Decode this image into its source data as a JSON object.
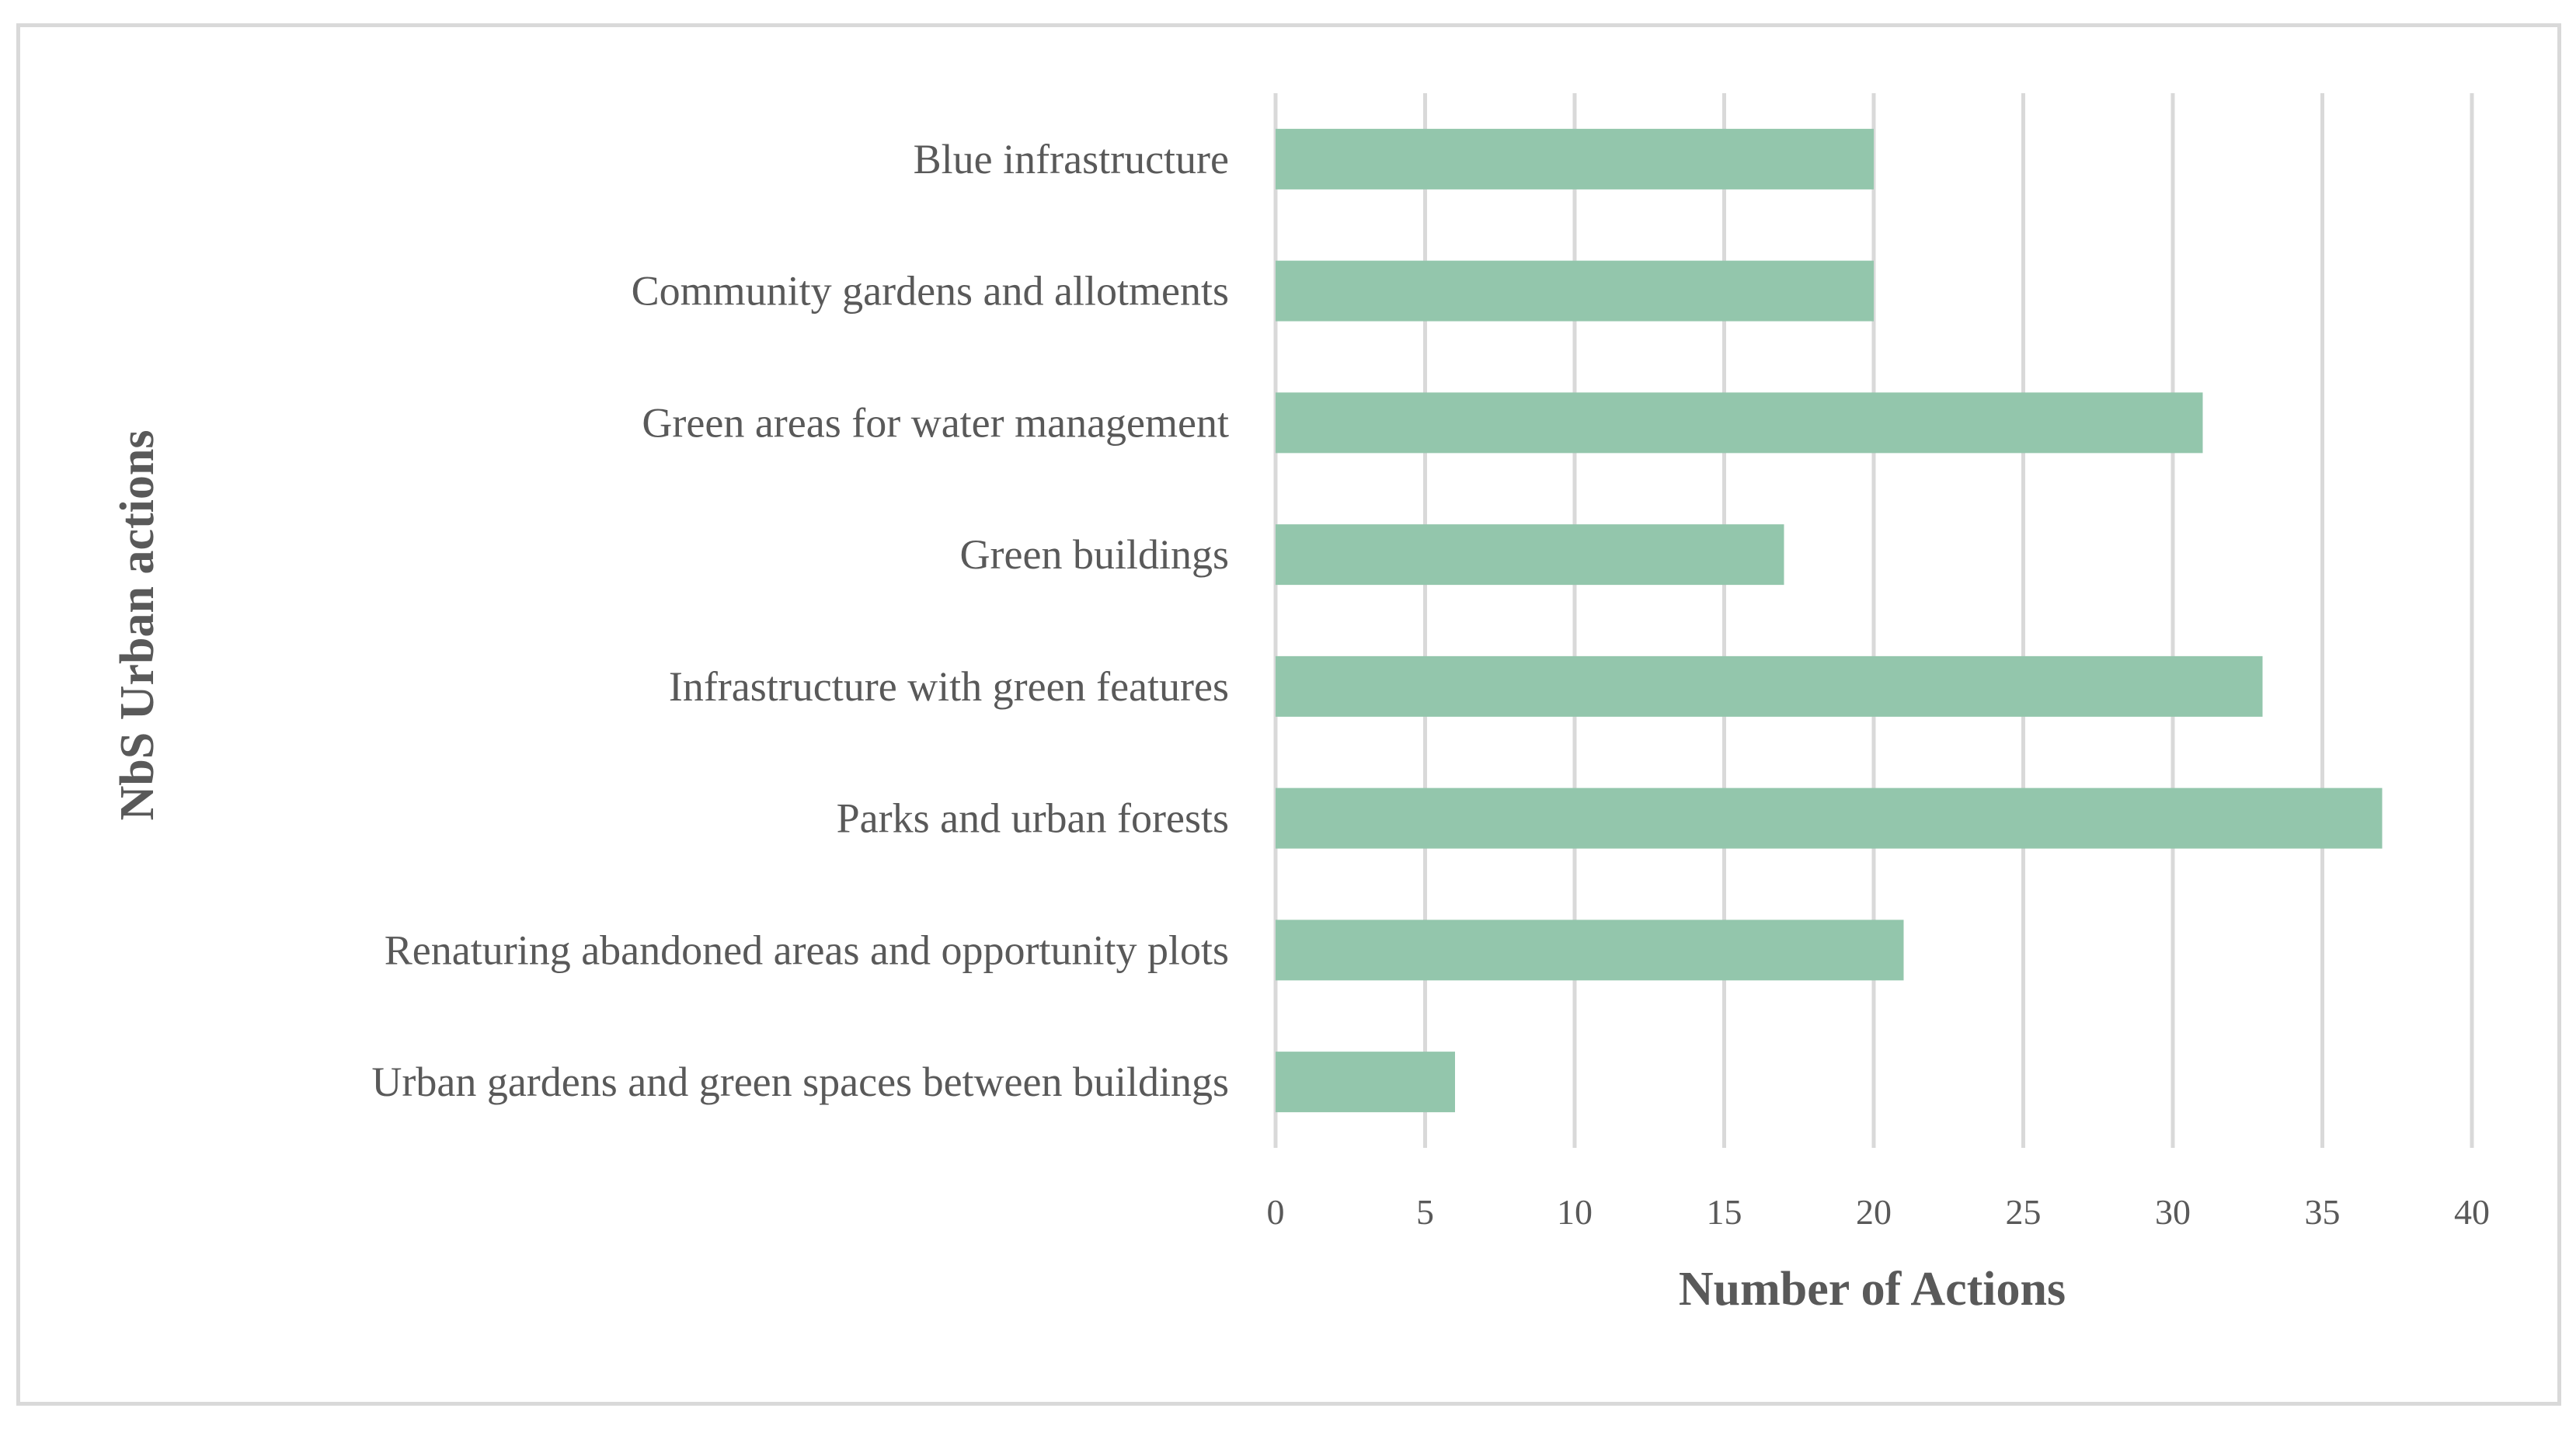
{
  "chart_data": {
    "type": "bar",
    "orientation": "horizontal",
    "categories": [
      "Blue infrastructure",
      "Community gardens and allotments",
      "Green areas for water management",
      "Green buildings",
      "Infrastructure with green features",
      "Parks and urban forests",
      "Renaturing abandoned areas and opportunity plots",
      "Urban gardens and green spaces between buildings"
    ],
    "values": [
      20,
      20,
      31,
      17,
      33,
      37,
      21,
      6
    ],
    "xlabel": "Number of Actions",
    "ylabel": "NbS Urban actions",
    "xlim": [
      0,
      40
    ],
    "xticks": [
      0,
      5,
      10,
      15,
      20,
      25,
      30,
      35,
      40
    ],
    "grid": "vertical",
    "legend": "none",
    "bar_color": "#93c6ac",
    "grid_color": "#d9d9d9",
    "text_color": "#595959"
  }
}
